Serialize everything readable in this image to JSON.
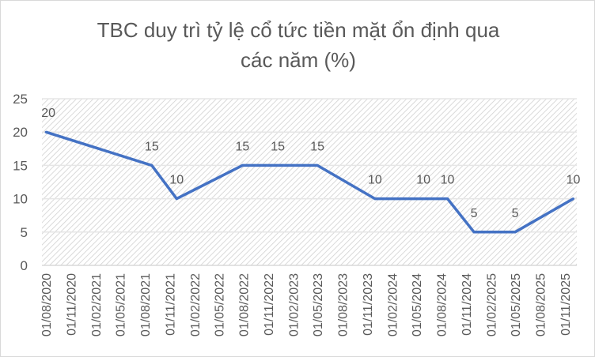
{
  "chart_data": {
    "type": "line",
    "title": [
      "TBC duy trì tỷ lệ cổ tức tiền mặt ổn định qua",
      "các năm (%)"
    ],
    "xlabel": "",
    "ylabel": "",
    "ylim": [
      0,
      25
    ],
    "ytick_step": 5,
    "y_ticks": [
      "0",
      "5",
      "10",
      "15",
      "20",
      "25"
    ],
    "xlim": [
      "2020-07-17",
      "2025-12-15"
    ],
    "x_ticks": [
      "01/08/2020",
      "01/11/2020",
      "01/02/2021",
      "01/05/2021",
      "01/08/2021",
      "01/11/2021",
      "01/02/2022",
      "01/05/2022",
      "01/08/2022",
      "01/11/2022",
      "01/02/2023",
      "01/05/2023",
      "01/08/2023",
      "01/11/2023",
      "01/02/2024",
      "01/05/2024",
      "01/08/2024",
      "01/11/2024",
      "01/02/2025",
      "01/05/2025",
      "01/08/2025",
      "01/11/2025"
    ],
    "grid": true,
    "legend": "none",
    "series": [
      {
        "color": "#4472C4",
        "points": [
          {
            "x": "2020-08-01",
            "y": 20
          },
          {
            "x": "2021-08-27",
            "y": 15
          },
          {
            "x": "2021-11-27",
            "y": 10
          },
          {
            "x": "2022-07-28",
            "y": 15
          },
          {
            "x": "2022-12-06",
            "y": 15
          },
          {
            "x": "2023-05-01",
            "y": 15
          },
          {
            "x": "2023-11-30",
            "y": 10
          },
          {
            "x": "2024-05-27",
            "y": 10
          },
          {
            "x": "2024-08-24",
            "y": 10
          },
          {
            "x": "2024-11-30",
            "y": 5
          },
          {
            "x": "2025-05-01",
            "y": 5
          },
          {
            "x": "2025-12-02",
            "y": 10
          }
        ]
      }
    ]
  }
}
